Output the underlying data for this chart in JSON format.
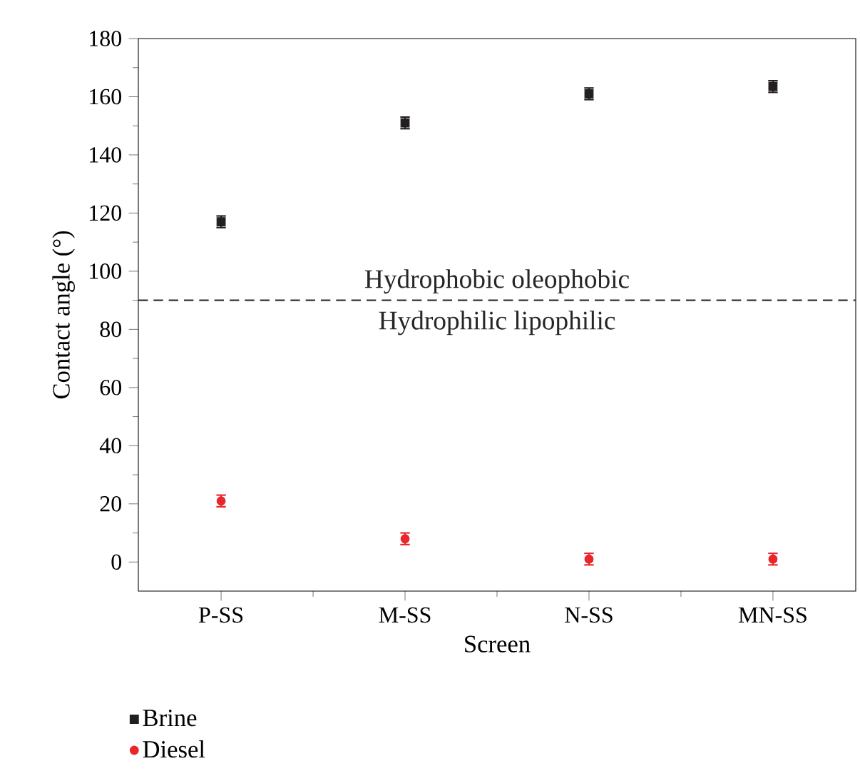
{
  "chart_data": {
    "type": "scatter",
    "xlabel": "Screen",
    "ylabel": "Contact angle (°)",
    "categories": [
      "P-SS",
      "M-SS",
      "N-SS",
      "MN-SS"
    ],
    "series": [
      {
        "name": "Brine",
        "color": "#231f20",
        "marker": "square",
        "values": [
          117,
          151,
          161,
          163.5
        ],
        "errors": [
          2,
          2,
          2,
          2
        ]
      },
      {
        "name": "Diesel",
        "color": "#e8262b",
        "marker": "circle",
        "values": [
          21,
          8,
          1,
          1
        ],
        "errors": [
          2,
          2,
          2,
          2
        ]
      }
    ],
    "ylim": [
      -10,
      180
    ],
    "yticks": [
      0,
      20,
      40,
      60,
      80,
      100,
      120,
      140,
      160,
      180
    ],
    "ref_lines": [
      {
        "axis": "y",
        "value": 90,
        "label": "Hydrophobic oleophobic",
        "color": "#333333",
        "line_style": "dashed"
      }
    ],
    "annotations": [
      "Hydrophilic lipophilic"
    ],
    "legend": "bottom left"
  }
}
